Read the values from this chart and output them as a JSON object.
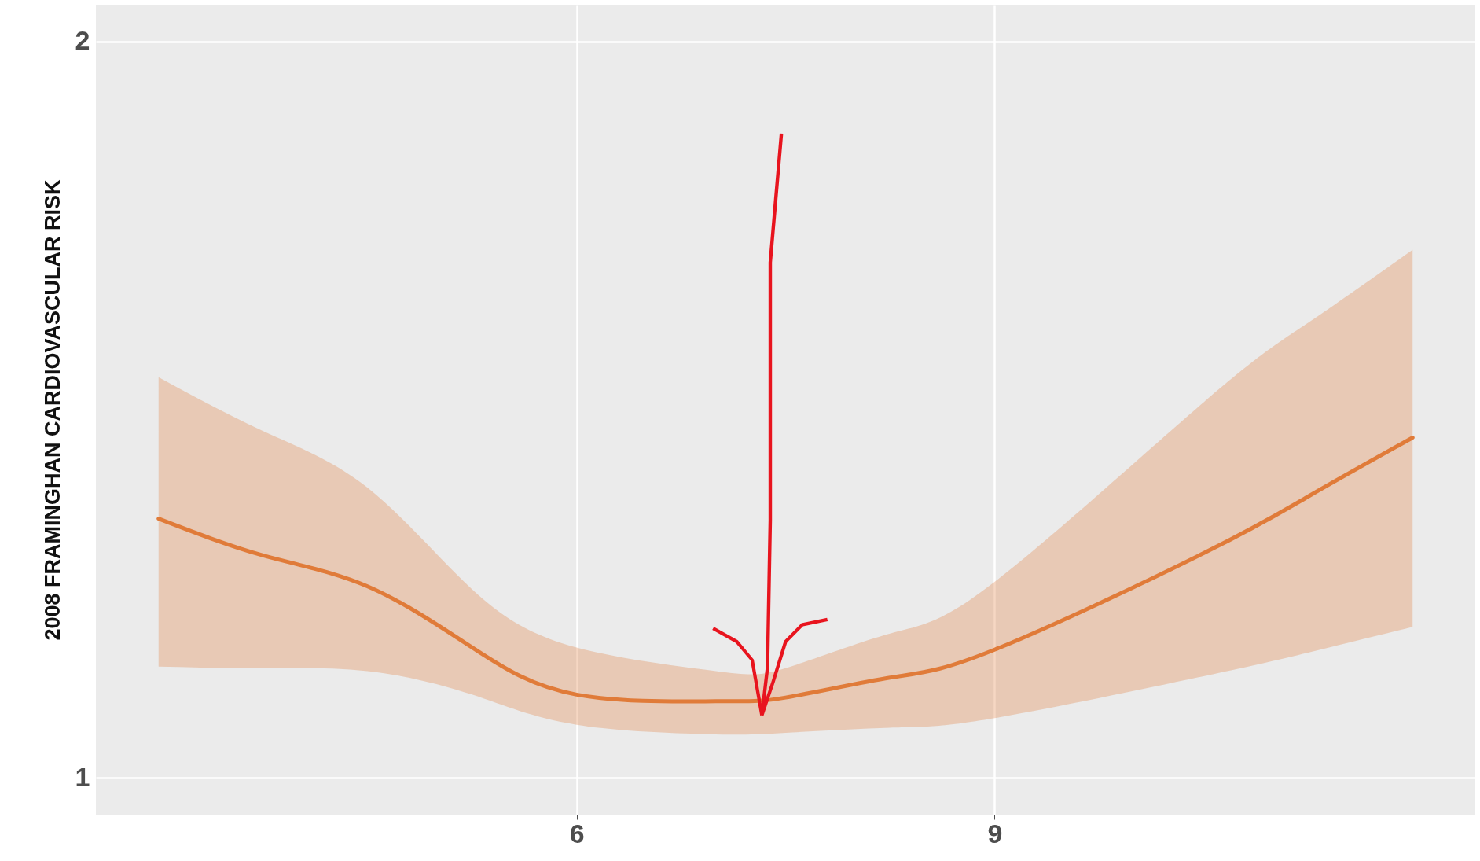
{
  "chart_data": {
    "type": "line",
    "ylabel": "2008 FRAMINGHAN CARDIOVASCULAR RISK",
    "x": [
      3,
      3.75,
      4.5,
      5.25,
      6,
      7,
      7.5,
      8.25,
      9,
      10.5,
      11.25,
      12
    ],
    "series": [
      {
        "color": "#e07b39",
        "values": [
          1.352,
          1.302,
          1.26,
          1.177,
          1.113,
          1.104,
          1.109,
          1.136,
          1.174,
          1.305,
          1.382,
          1.462
        ],
        "lower": [
          1.151,
          1.149,
          1.145,
          1.113,
          1.072,
          1.059,
          1.061,
          1.068,
          1.081,
          1.138,
          1.17,
          1.205
        ],
        "upper": [
          1.544,
          1.471,
          1.394,
          1.256,
          1.177,
          1.145,
          1.149,
          1.196,
          1.266,
          1.51,
          1.618,
          1.717
        ]
      }
    ],
    "xlim": [
      2.55,
      12.45
    ],
    "xticks": [
      6,
      9
    ],
    "ylim": [
      0.95,
      2.05
    ],
    "yticks": [
      1,
      2
    ],
    "grid": true
  }
}
